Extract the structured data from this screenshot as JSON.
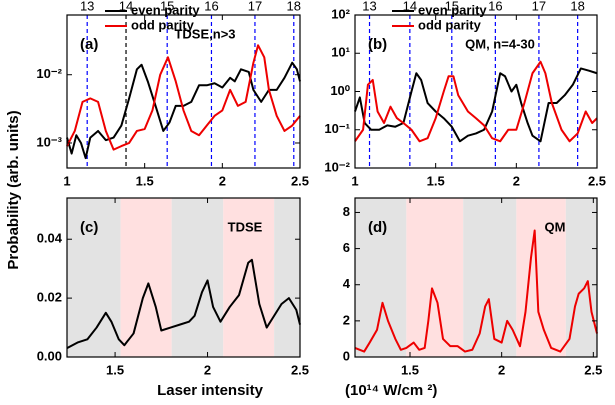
{
  "y_label": "Probability (arb. units)",
  "x_label": "Laser intensity",
  "x_unit": "(10¹⁴ W/cm ²)",
  "chart_data": [
    {
      "type": "line",
      "panel_label": "(a)",
      "annotation": "TDSE,n>3",
      "log_y": true,
      "xlim": [
        1,
        2.5
      ],
      "xticks": [
        1,
        1.5,
        2,
        2.5
      ],
      "ylim": [
        0.00043,
        0.075
      ],
      "yticks": [
        {
          "value": 0.001,
          "label": "10⁻³"
        },
        {
          "value": 0.01,
          "label": "10⁻²"
        }
      ],
      "top_ticks": [
        {
          "value": 1.13,
          "label": "13"
        },
        {
          "value": 1.38,
          "label": "14"
        },
        {
          "value": 1.645,
          "label": "15"
        },
        {
          "value": 1.93,
          "label": "16"
        },
        {
          "value": 2.21,
          "label": "17"
        },
        {
          "value": 2.46,
          "label": "18"
        }
      ],
      "top_tick_colors": [
        "#0000ff",
        "#000000",
        "#0000ff",
        "#0000ff",
        "#0000ff",
        "#0000ff"
      ],
      "series": [
        {
          "name": "even parity",
          "color": "#000000",
          "x": [
            1.0,
            1.03,
            1.06,
            1.09,
            1.12,
            1.15,
            1.2,
            1.25,
            1.3,
            1.35,
            1.4,
            1.45,
            1.48,
            1.52,
            1.57,
            1.62,
            1.66,
            1.7,
            1.75,
            1.8,
            1.85,
            1.9,
            1.95,
            2.0,
            2.05,
            2.08,
            2.12,
            2.17,
            2.2,
            2.25,
            2.3,
            2.35,
            2.4,
            2.45,
            2.48,
            2.5
          ],
          "values": [
            0.0012,
            0.0007,
            0.0013,
            0.001,
            0.0006,
            0.0012,
            0.0015,
            0.0011,
            0.0012,
            0.0018,
            0.0045,
            0.012,
            0.014,
            0.008,
            0.0035,
            0.0015,
            0.002,
            0.0035,
            0.0035,
            0.004,
            0.007,
            0.007,
            0.0075,
            0.0065,
            0.009,
            0.008,
            0.012,
            0.011,
            0.006,
            0.004,
            0.006,
            0.006,
            0.009,
            0.015,
            0.012,
            0.008
          ]
        },
        {
          "name": "odd parity",
          "color": "#ee0000",
          "x": [
            1.0,
            1.05,
            1.1,
            1.15,
            1.2,
            1.25,
            1.3,
            1.35,
            1.4,
            1.45,
            1.5,
            1.55,
            1.6,
            1.65,
            1.7,
            1.75,
            1.8,
            1.85,
            1.9,
            1.95,
            2.0,
            2.05,
            2.1,
            2.15,
            2.2,
            2.23,
            2.27,
            2.3,
            2.35,
            2.4,
            2.45,
            2.5
          ],
          "values": [
            0.0009,
            0.0015,
            0.004,
            0.0045,
            0.004,
            0.0015,
            0.0008,
            0.0009,
            0.001,
            0.0015,
            0.0016,
            0.003,
            0.01,
            0.018,
            0.008,
            0.003,
            0.0015,
            0.0013,
            0.0018,
            0.0025,
            0.003,
            0.006,
            0.0035,
            0.004,
            0.015,
            0.027,
            0.018,
            0.006,
            0.0025,
            0.0015,
            0.0018,
            0.0025
          ]
        }
      ]
    },
    {
      "type": "line",
      "panel_label": "(b)",
      "annotation": "QM, n=4-30",
      "log_y": true,
      "xlim": [
        1,
        2.5
      ],
      "xticks": [
        1,
        1.5,
        2,
        2.5
      ],
      "ylim": [
        0.01,
        100
      ],
      "yticks": [
        {
          "value": 0.01,
          "label": "10⁻²"
        },
        {
          "value": 0.1,
          "label": "10⁻¹"
        },
        {
          "value": 1,
          "label": "10⁰"
        },
        {
          "value": 10,
          "label": "10¹"
        },
        {
          "value": 100,
          "label": "10²"
        }
      ],
      "top_ticks": [
        {
          "value": 1.09,
          "label": "13"
        },
        {
          "value": 1.34,
          "label": "14"
        },
        {
          "value": 1.6,
          "label": "15"
        },
        {
          "value": 1.87,
          "label": "16"
        },
        {
          "value": 2.14,
          "label": "17"
        },
        {
          "value": 2.38,
          "label": "18"
        }
      ],
      "top_tick_colors": [
        "#0000ff",
        "#0000ff",
        "#0000ff",
        "#0000ff",
        "#0000ff",
        "#0000ff"
      ],
      "series": [
        {
          "name": "even parity",
          "color": "#000000",
          "x": [
            1.0,
            1.03,
            1.06,
            1.1,
            1.15,
            1.2,
            1.25,
            1.3,
            1.35,
            1.38,
            1.41,
            1.45,
            1.5,
            1.55,
            1.6,
            1.65,
            1.7,
            1.75,
            1.8,
            1.85,
            1.9,
            1.93,
            1.97,
            2.0,
            2.03,
            2.07,
            2.1,
            2.15,
            2.2,
            2.25,
            2.3,
            2.35,
            2.4,
            2.45,
            2.5
          ],
          "values": [
            0.3,
            0.7,
            0.15,
            0.1,
            0.1,
            0.13,
            0.12,
            0.15,
            1.0,
            3.0,
            2.0,
            0.5,
            0.3,
            0.2,
            0.12,
            0.05,
            0.07,
            0.08,
            0.1,
            0.3,
            3.0,
            2.5,
            1.0,
            1.5,
            0.5,
            0.15,
            0.07,
            0.05,
            0.5,
            0.5,
            0.8,
            1.5,
            4.0,
            3.5,
            3.0
          ]
        },
        {
          "name": "odd parity",
          "color": "#ee0000",
          "x": [
            1.0,
            1.05,
            1.08,
            1.11,
            1.14,
            1.18,
            1.22,
            1.26,
            1.3,
            1.35,
            1.4,
            1.45,
            1.5,
            1.55,
            1.58,
            1.61,
            1.64,
            1.7,
            1.75,
            1.8,
            1.85,
            1.9,
            1.95,
            2.0,
            2.05,
            2.1,
            2.15,
            2.18,
            2.22,
            2.28,
            2.33,
            2.38,
            2.43,
            2.47,
            2.5
          ],
          "values": [
            0.05,
            0.1,
            1.5,
            2.0,
            0.3,
            0.15,
            0.4,
            0.2,
            0.15,
            0.1,
            0.05,
            0.06,
            0.2,
            1.0,
            2.5,
            2.5,
            0.8,
            0.3,
            0.2,
            0.13,
            0.06,
            0.05,
            0.1,
            0.1,
            0.5,
            3.0,
            6.0,
            3.0,
            0.5,
            0.1,
            0.05,
            0.08,
            0.3,
            0.15,
            0.2
          ]
        }
      ]
    },
    {
      "type": "line",
      "panel_label": "(c)",
      "annotation": "TDSE",
      "log_y": false,
      "xlim": [
        1.24,
        2.5
      ],
      "xticks": [
        1.5,
        2,
        2.5
      ],
      "ylim": [
        0,
        0.054
      ],
      "yticks": [
        {
          "value": 0,
          "label": "0.00"
        },
        0.02,
        0.04
      ],
      "bands": [
        {
          "from": 1.24,
          "to": 1.53,
          "color": "#e3e3e3"
        },
        {
          "from": 1.53,
          "to": 1.806,
          "color": "#ffe0e0"
        },
        {
          "from": 1.806,
          "to": 2.085,
          "color": "#e3e3e3"
        },
        {
          "from": 2.085,
          "to": 2.36,
          "color": "#ffe0e0"
        },
        {
          "from": 2.36,
          "to": 2.5,
          "color": "#e3e3e3"
        }
      ],
      "series": [
        {
          "color": "#000000",
          "x": [
            1.24,
            1.3,
            1.35,
            1.4,
            1.45,
            1.48,
            1.52,
            1.55,
            1.6,
            1.65,
            1.68,
            1.72,
            1.75,
            1.8,
            1.85,
            1.9,
            1.93,
            1.97,
            2.0,
            2.03,
            2.07,
            2.12,
            2.17,
            2.22,
            2.24,
            2.28,
            2.32,
            2.35,
            2.4,
            2.44,
            2.48,
            2.5
          ],
          "values": [
            0.003,
            0.005,
            0.006,
            0.01,
            0.015,
            0.012,
            0.006,
            0.004,
            0.008,
            0.02,
            0.025,
            0.017,
            0.009,
            0.01,
            0.011,
            0.012,
            0.014,
            0.022,
            0.026,
            0.017,
            0.012,
            0.017,
            0.021,
            0.032,
            0.033,
            0.018,
            0.01,
            0.013,
            0.018,
            0.02,
            0.016,
            0.011
          ]
        }
      ]
    },
    {
      "type": "line",
      "panel_label": "(d)",
      "annotation": "QM",
      "log_y": false,
      "xlim": [
        1.2,
        2.52
      ],
      "xticks": [
        1.5,
        2,
        2.5
      ],
      "ylim": [
        0,
        8.8
      ],
      "yticks": [
        0,
        2,
        4,
        6,
        8
      ],
      "bands": [
        {
          "from": 1.2,
          "to": 1.48,
          "color": "#e3e3e3"
        },
        {
          "from": 1.48,
          "to": 1.79,
          "color": "#ffe0e0"
        },
        {
          "from": 1.79,
          "to": 2.08,
          "color": "#e3e3e3"
        },
        {
          "from": 2.08,
          "to": 2.35,
          "color": "#ffe0e0"
        },
        {
          "from": 2.35,
          "to": 2.52,
          "color": "#e3e3e3"
        }
      ],
      "series": [
        {
          "color": "#ee0000",
          "x": [
            1.2,
            1.25,
            1.28,
            1.32,
            1.35,
            1.38,
            1.42,
            1.45,
            1.48,
            1.52,
            1.55,
            1.58,
            1.6,
            1.62,
            1.65,
            1.68,
            1.72,
            1.76,
            1.8,
            1.84,
            1.88,
            1.91,
            1.93,
            1.96,
            2.0,
            2.03,
            2.06,
            2.1,
            2.13,
            2.16,
            2.18,
            2.2,
            2.23,
            2.27,
            2.32,
            2.37,
            2.4,
            2.42,
            2.45,
            2.47,
            2.49,
            2.52
          ],
          "values": [
            0.5,
            0.3,
            0.8,
            1.5,
            3.0,
            2.0,
            1.0,
            0.4,
            0.5,
            0.8,
            0.4,
            0.5,
            2.0,
            3.8,
            3.0,
            1.0,
            0.6,
            0.6,
            0.3,
            0.4,
            1.3,
            2.8,
            3.2,
            1.0,
            0.8,
            2.0,
            1.5,
            0.6,
            2.5,
            5.5,
            7.0,
            2.5,
            1.5,
            0.5,
            0.3,
            1.0,
            2.8,
            3.5,
            3.8,
            4.2,
            2.5,
            1.3
          ]
        }
      ]
    }
  ]
}
